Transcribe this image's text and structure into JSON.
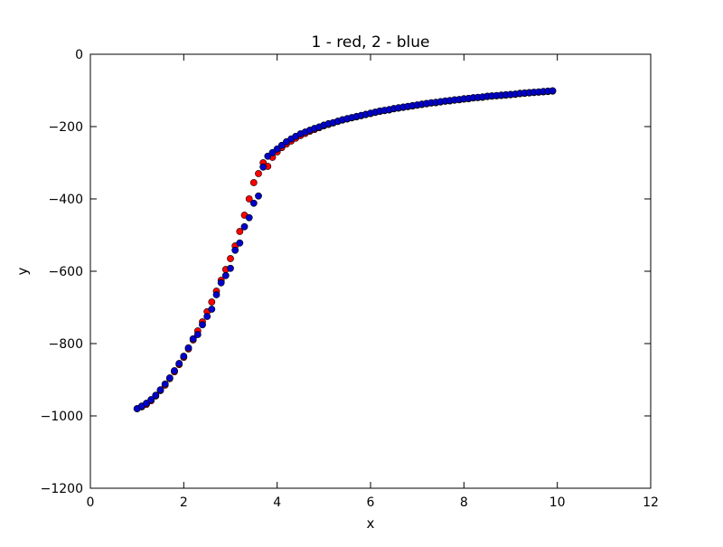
{
  "chart_data": {
    "type": "scatter",
    "title": "1 - red, 2 - blue",
    "xlabel": "x",
    "ylabel": "y",
    "xlim": [
      0,
      12
    ],
    "ylim": [
      -1200,
      0
    ],
    "xticks": [
      0,
      2,
      4,
      6,
      8,
      10,
      12
    ],
    "yticks": [
      0,
      -200,
      -400,
      -600,
      -800,
      -1000,
      -1200
    ],
    "grid": false,
    "legend": "none",
    "series": [
      {
        "color": "#ff0000",
        "x": [
          1.0,
          1.1,
          1.2,
          1.3,
          1.4,
          1.5,
          1.6,
          1.7,
          1.8,
          1.9,
          2.0,
          2.1,
          2.2,
          2.3,
          2.4,
          2.5,
          2.6,
          2.7,
          2.8,
          2.9,
          3.0,
          3.1,
          3.2,
          3.3,
          3.4,
          3.5,
          3.6,
          3.7,
          3.8,
          3.9,
          4.0,
          4.1,
          4.2,
          4.3,
          4.4,
          4.5,
          4.6,
          4.7,
          4.8,
          4.9,
          5.0,
          5.1,
          5.2,
          5.3,
          5.4,
          5.5,
          5.6,
          5.7,
          5.8,
          5.9,
          6.0,
          6.1,
          6.2,
          6.3,
          6.4,
          6.5,
          6.6,
          6.7,
          6.8,
          6.9,
          7.0,
          7.1,
          7.2,
          7.3,
          7.4,
          7.5,
          7.6,
          7.7,
          7.8,
          7.9,
          8.0,
          8.1,
          8.2,
          8.3,
          8.4,
          8.5,
          8.6,
          8.7,
          8.8,
          8.9,
          9.0,
          9.1,
          9.2,
          9.3,
          9.4,
          9.5,
          9.6,
          9.7,
          9.8,
          9.9
        ],
        "y": [
          -980,
          -975,
          -968,
          -958,
          -945,
          -930,
          -915,
          -897,
          -878,
          -858,
          -838,
          -815,
          -790,
          -765,
          -740,
          -712,
          -685,
          -655,
          -625,
          -595,
          -565,
          -530,
          -490,
          -445,
          -400,
          -355,
          -330,
          -300,
          -310,
          -285,
          -270,
          -258,
          -248,
          -240,
          -232,
          -225,
          -219,
          -213,
          -208,
          -203,
          -198,
          -194,
          -190,
          -186,
          -182,
          -179,
          -176,
          -173,
          -170,
          -167,
          -164,
          -161,
          -158,
          -156,
          -154,
          -151,
          -149,
          -147,
          -145,
          -143,
          -141,
          -139,
          -137,
          -135,
          -134,
          -132,
          -130,
          -129,
          -127,
          -126,
          -124,
          -123,
          -121,
          -120,
          -119,
          -117,
          -116,
          -115,
          -114,
          -113,
          -112,
          -111,
          -109,
          -108,
          -107,
          -106,
          -105,
          -104,
          -103,
          -102
        ]
      },
      {
        "color": "#0000cc",
        "x": [
          1.0,
          1.1,
          1.2,
          1.3,
          1.4,
          1.5,
          1.6,
          1.7,
          1.8,
          1.9,
          2.0,
          2.1,
          2.2,
          2.3,
          2.4,
          2.5,
          2.6,
          2.7,
          2.8,
          2.9,
          3.0,
          3.1,
          3.2,
          3.3,
          3.4,
          3.5,
          3.6,
          3.7,
          3.8,
          3.9,
          4.0,
          4.1,
          4.2,
          4.3,
          4.4,
          4.5,
          4.6,
          4.7,
          4.8,
          4.9,
          5.0,
          5.1,
          5.2,
          5.3,
          5.4,
          5.5,
          5.6,
          5.7,
          5.8,
          5.9,
          6.0,
          6.1,
          6.2,
          6.3,
          6.4,
          6.5,
          6.6,
          6.7,
          6.8,
          6.9,
          7.0,
          7.1,
          7.2,
          7.3,
          7.4,
          7.5,
          7.6,
          7.7,
          7.8,
          7.9,
          8.0,
          8.1,
          8.2,
          8.3,
          8.4,
          8.5,
          8.6,
          8.7,
          8.8,
          8.9,
          9.0,
          9.1,
          9.2,
          9.3,
          9.4,
          9.5,
          9.6,
          9.7,
          9.8,
          9.9
        ],
        "y": [
          -980,
          -973,
          -965,
          -955,
          -943,
          -928,
          -912,
          -895,
          -875,
          -855,
          -835,
          -812,
          -787,
          -775,
          -748,
          -725,
          -705,
          -665,
          -632,
          -612,
          -592,
          -542,
          -522,
          -477,
          -452,
          -412,
          -392,
          -312,
          -282,
          -272,
          -262,
          -252,
          -242,
          -234,
          -227,
          -220,
          -215,
          -210,
          -205,
          -201,
          -196,
          -192,
          -189,
          -185,
          -181,
          -178,
          -175,
          -172,
          -169,
          -166,
          -163,
          -160,
          -157,
          -155,
          -153,
          -150,
          -148,
          -146,
          -144,
          -142,
          -140,
          -138,
          -136,
          -134,
          -133,
          -131,
          -129,
          -128,
          -126,
          -125,
          -123,
          -122,
          -120,
          -119,
          -118,
          -116,
          -115,
          -114,
          -113,
          -112,
          -111,
          -110,
          -108,
          -107,
          -106,
          -105,
          -104,
          -103,
          -102,
          -101
        ]
      }
    ]
  }
}
